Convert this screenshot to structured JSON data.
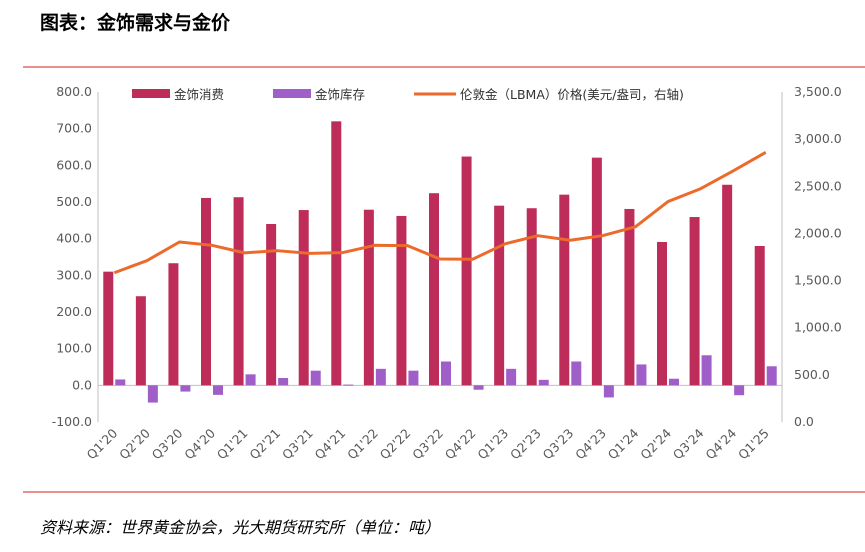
{
  "header": {
    "title": "图表：金饰需求与金价"
  },
  "footer": {
    "source": "资料来源：世界黄金协会，光大期货研究所（单位：吨）"
  },
  "colors": {
    "consumption": "#be2d59",
    "inventory": "#a05ec8",
    "price": "#ec6a2b",
    "rule": "#e8908c"
  },
  "chart_data": {
    "type": "bar",
    "categories": [
      "Q1'20",
      "Q2'20",
      "Q3'20",
      "Q4'20",
      "Q1'21",
      "Q2'21",
      "Q3'21",
      "Q4'21",
      "Q1'22",
      "Q2'22",
      "Q3'22",
      "Q4'22",
      "Q1'23",
      "Q2'23",
      "Q3'23",
      "Q4'23",
      "Q1'24",
      "Q2'24",
      "Q3'24",
      "Q4'24",
      "Q1'25"
    ],
    "series": [
      {
        "name": "金饰消费",
        "type": "bar",
        "axis": "left",
        "values": [
          310,
          243,
          333,
          511,
          513,
          440,
          478,
          720,
          479,
          462,
          524,
          624,
          490,
          483,
          520,
          621,
          481,
          391,
          459,
          547,
          380
        ]
      },
      {
        "name": "金饰库存",
        "type": "bar",
        "axis": "left",
        "values": [
          16,
          -47,
          -17,
          -26,
          30,
          20,
          40,
          2,
          45,
          40,
          65,
          -12,
          45,
          15,
          65,
          -33,
          57,
          18,
          82,
          -27,
          52
        ]
      },
      {
        "name": "伦敦金（LBMA）价格(美元/盎司，右轴)",
        "type": "line",
        "axis": "right",
        "values": [
          1583,
          1711,
          1909,
          1874,
          1794,
          1817,
          1789,
          1796,
          1874,
          1871,
          1729,
          1726,
          1890,
          1976,
          1928,
          1977,
          2070,
          2338,
          2474,
          2663,
          2860
        ]
      }
    ],
    "y_left": {
      "min": -100,
      "max": 800,
      "step": 100,
      "tick_labels": [
        "-100.0",
        "0.0",
        "100.0",
        "200.0",
        "300.0",
        "400.0",
        "500.0",
        "600.0",
        "700.0",
        "800.0"
      ]
    },
    "y_right": {
      "min": 0,
      "max": 3500,
      "step": 500,
      "tick_labels": [
        "0.0",
        "500.0",
        "1,000.0",
        "1,500.0",
        "2,000.0",
        "2,500.0",
        "3,000.0",
        "3,500.0"
      ]
    },
    "legend_position": "top",
    "grid": false
  }
}
